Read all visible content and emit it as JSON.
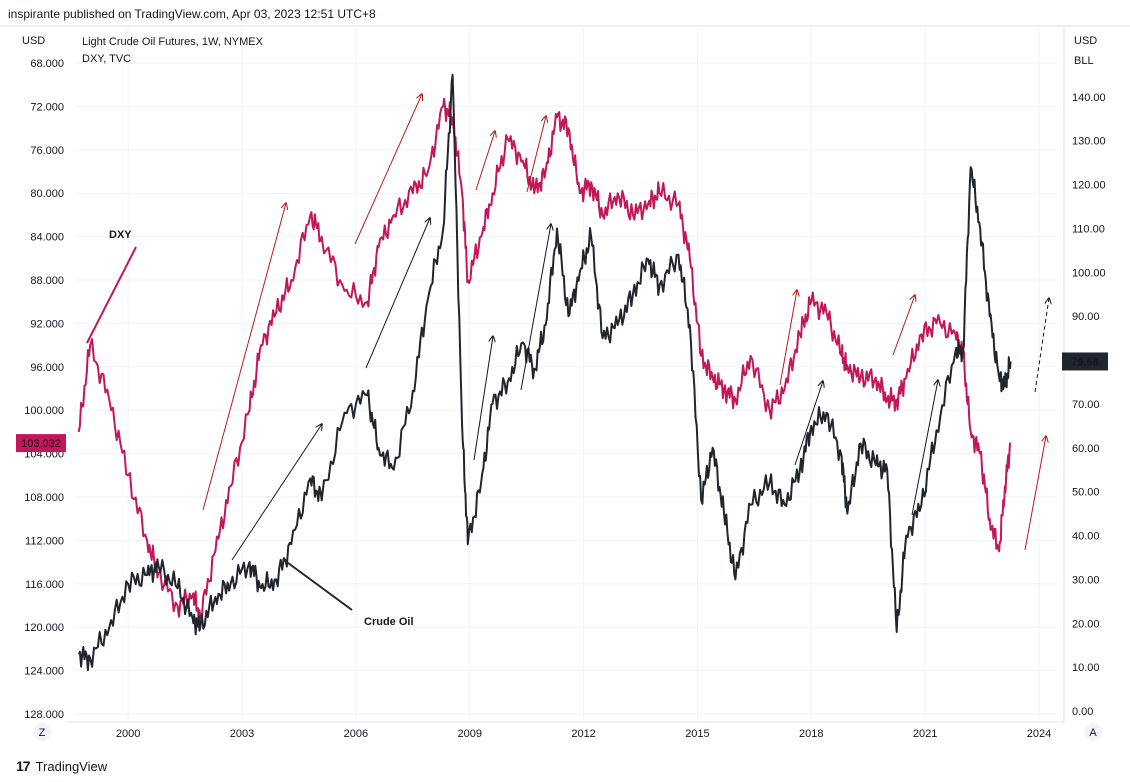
{
  "header": {
    "published": "inspirante published on TradingView.com, Apr 03, 2023 12:51 UTC+8"
  },
  "legend": {
    "line1": "Light Crude Oil Futures, 1W, NYMEX",
    "line2": "DXY, TVC"
  },
  "axes": {
    "left_unit": "USD",
    "right_unit_1": "USD",
    "right_unit_2": "BLL",
    "left_ticks": [
      "68.000",
      "72.000",
      "76.000",
      "80.000",
      "84.000",
      "88.000",
      "92.000",
      "96.000",
      "100.000",
      "104.000",
      "108.000",
      "112.000",
      "116.000",
      "120.000",
      "124.000",
      "128.000"
    ],
    "right_ticks": [
      "140.00",
      "130.00",
      "120.00",
      "110.00",
      "100.00",
      "90.00",
      "80.00",
      "70.00",
      "60.00",
      "50.00",
      "40.00",
      "30.00",
      "20.00",
      "10.00",
      "0.00"
    ],
    "x_ticks": [
      "2000",
      "2003",
      "2006",
      "2009",
      "2012",
      "2015",
      "2018",
      "2021",
      "2024"
    ],
    "left_corner": "Z",
    "right_corner": "A"
  },
  "price_tags": {
    "dxy_last": "103.032",
    "oil_last": "79.68"
  },
  "annotations": {
    "dxy": "DXY",
    "crude": "Crude Oil"
  },
  "footer": {
    "brand": "TradingView",
    "logo": "17"
  },
  "colors": {
    "dxy": "#c2185b",
    "oil": "#22252e",
    "grid": "#f0f3fa",
    "arrow_red": "#b71c1c",
    "arrow_black": "#131722"
  },
  "chart_data": [
    {
      "type": "line",
      "title": "Light Crude Oil Futures, 1W, NYMEX / DXY, TVC",
      "x_range": [
        1998.6,
        2024.5
      ],
      "series": [
        {
          "name": "Light Crude Oil Futures, 1W, NYMEX",
          "axis": "right",
          "unit": "USD/BLL",
          "ylim": [
            0,
            150
          ],
          "x": [
            1998.7,
            1999.0,
            1999.5,
            2000.0,
            2000.5,
            2000.8,
            2001.3,
            2001.7,
            2001.9,
            2002.3,
            2002.7,
            2003.2,
            2003.5,
            2003.9,
            2004.3,
            2004.8,
            2005.1,
            2005.7,
            2006.3,
            2006.6,
            2007.0,
            2007.5,
            2007.9,
            2008.3,
            2008.55,
            2008.8,
            2008.95,
            2009.3,
            2009.6,
            2010.0,
            2010.4,
            2010.7,
            2011.0,
            2011.3,
            2011.6,
            2011.9,
            2012.2,
            2012.5,
            2012.9,
            2013.3,
            2013.7,
            2014.0,
            2014.5,
            2014.8,
            2015.1,
            2015.4,
            2015.7,
            2016.0,
            2016.4,
            2016.9,
            2017.3,
            2017.7,
            2018.0,
            2018.4,
            2018.8,
            2018.95,
            2019.3,
            2019.7,
            2020.0,
            2020.25,
            2020.5,
            2020.9,
            2021.3,
            2021.8,
            2022.0,
            2022.2,
            2022.45,
            2022.7,
            2022.95,
            2023.1,
            2023.25
          ],
          "values": [
            13,
            12,
            19,
            29,
            31,
            33,
            28,
            21,
            19,
            26,
            29,
            34,
            28,
            30,
            38,
            53,
            48,
            68,
            72,
            60,
            55,
            73,
            94,
            110,
            145,
            65,
            38,
            52,
            70,
            75,
            84,
            78,
            88,
            110,
            90,
            100,
            108,
            85,
            88,
            95,
            103,
            97,
            104,
            88,
            48,
            60,
            45,
            30,
            47,
            52,
            47,
            55,
            65,
            68,
            58,
            45,
            61,
            56,
            55,
            18,
            40,
            47,
            64,
            82,
            82,
            124,
            110,
            90,
            76,
            74,
            79.68
          ]
        },
        {
          "name": "DXY, TVC",
          "axis": "left",
          "unit": "USD",
          "ylim": [
            128,
            68
          ],
          "x": [
            1998.7,
            1999.0,
            1999.5,
            2000.0,
            2000.5,
            2000.8,
            2001.3,
            2001.7,
            2001.9,
            2002.3,
            2002.7,
            2003.2,
            2003.5,
            2003.9,
            2004.3,
            2004.8,
            2005.1,
            2005.7,
            2006.3,
            2006.6,
            2007.0,
            2007.5,
            2007.9,
            2008.3,
            2008.55,
            2008.8,
            2008.95,
            2009.3,
            2009.6,
            2010.0,
            2010.4,
            2010.7,
            2011.0,
            2011.3,
            2011.6,
            2011.9,
            2012.2,
            2012.5,
            2012.9,
            2013.3,
            2013.7,
            2014.0,
            2014.5,
            2014.8,
            2015.1,
            2015.4,
            2015.7,
            2016.0,
            2016.4,
            2016.9,
            2017.3,
            2017.7,
            2018.0,
            2018.4,
            2018.8,
            2018.95,
            2019.3,
            2019.7,
            2020.0,
            2020.25,
            2020.5,
            2020.9,
            2021.3,
            2021.8,
            2022.0,
            2022.2,
            2022.45,
            2022.7,
            2022.95,
            2023.1,
            2023.25
          ],
          "values": [
            102,
            94,
            99,
            106,
            112,
            115,
            118,
            117,
            119,
            113,
            107,
            100,
            94,
            91,
            88,
            82,
            84,
            89,
            90,
            85,
            82,
            80,
            78,
            72,
            73,
            80,
            88,
            84,
            80,
            75,
            77,
            80,
            78,
            73,
            74,
            80,
            79,
            82,
            80,
            82,
            81,
            80,
            81,
            86,
            95,
            97,
            98,
            99,
            95,
            100,
            98,
            93,
            90,
            91,
            95,
            96,
            97,
            97,
            99,
            99,
            97,
            93,
            92,
            93,
            95,
            102,
            104,
            110,
            113,
            107,
            103.032
          ]
        }
      ]
    }
  ]
}
